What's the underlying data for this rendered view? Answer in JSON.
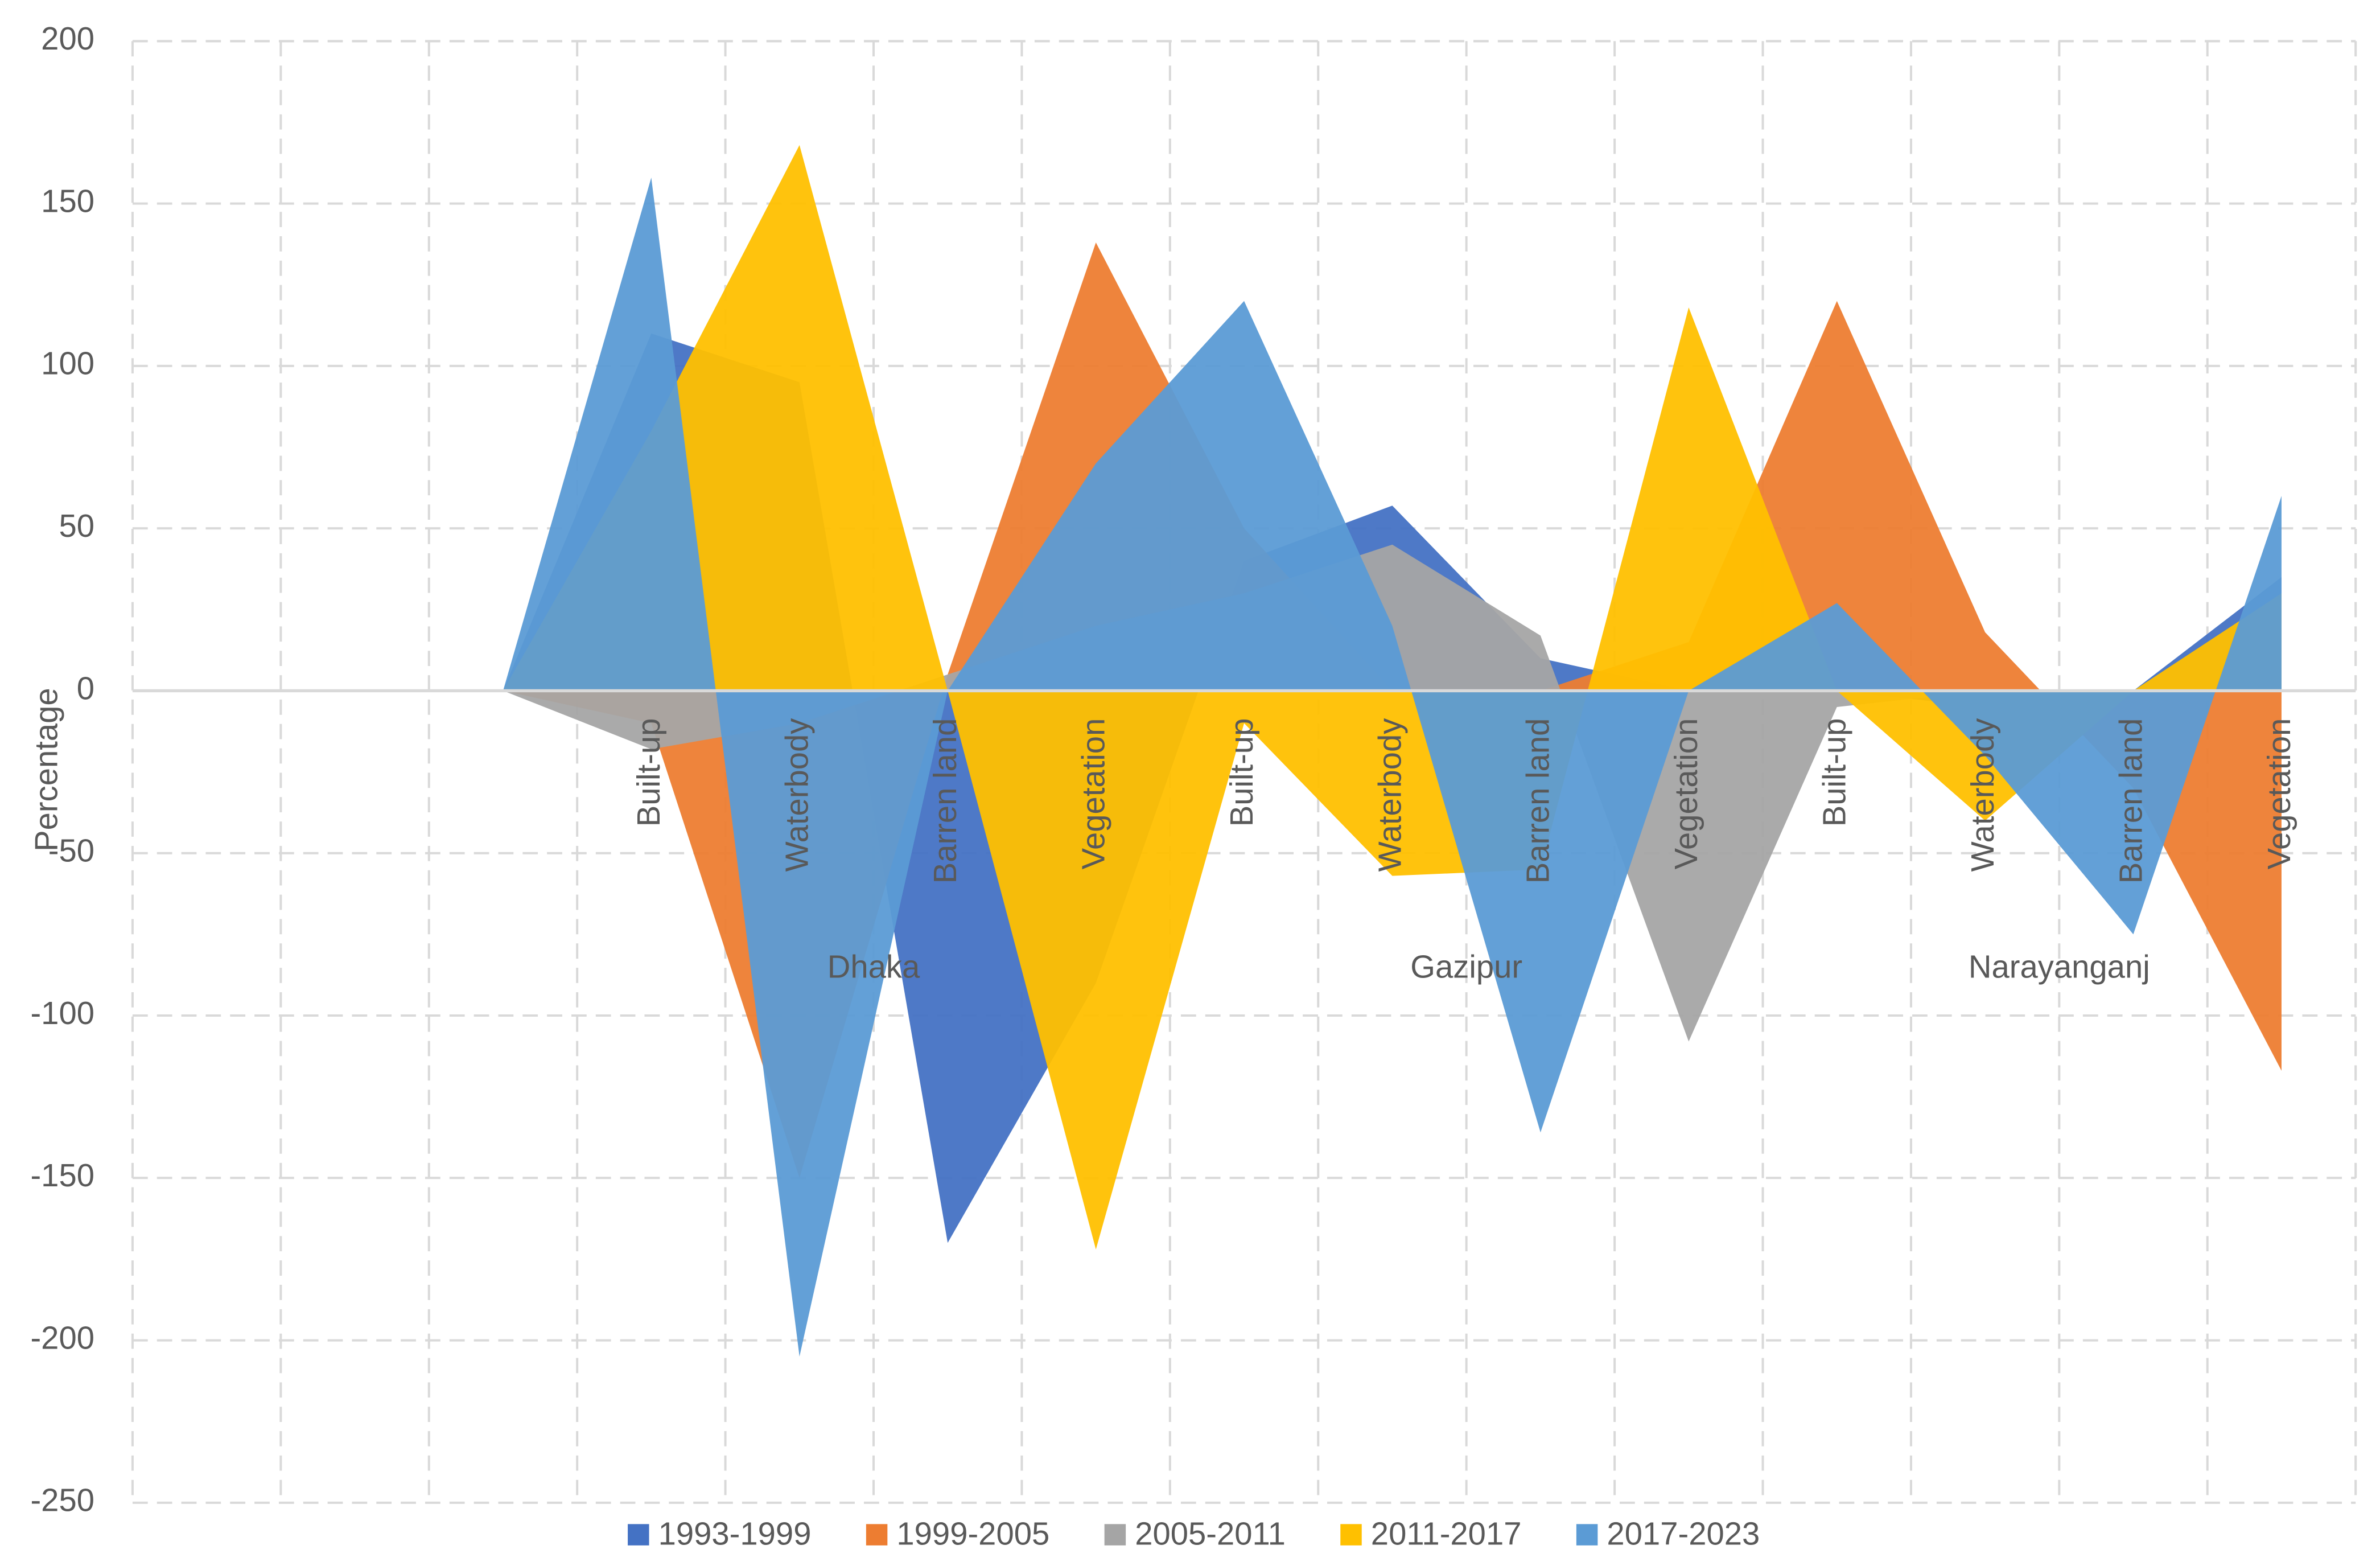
{
  "chart_data": {
    "type": "area",
    "y_label": "Percentage",
    "categories": [
      null,
      null,
      null,
      "Built-up",
      "Waterbody",
      "Barren land",
      "Vegetation",
      "Built-up",
      "Waterbody",
      "Barren land",
      "Vegetation",
      "Built-up",
      "Waterbody",
      "Barren land",
      "Vegetation"
    ],
    "group_labels": [
      "Dhaka",
      "Gazipur",
      "Narayanganj"
    ],
    "series": [
      {
        "name": "1993-1999",
        "color": "#4472c4",
        "values": [
          null,
          null,
          0,
          110,
          95,
          -170,
          -90,
          40,
          57,
          10,
          0,
          0,
          -5,
          0,
          35
        ]
      },
      {
        "name": "1999-2005",
        "color": "#ed7d31",
        "values": [
          null,
          null,
          0,
          -10,
          -150,
          5,
          138,
          50,
          0,
          0,
          15,
          120,
          18,
          -30,
          -117
        ]
      },
      {
        "name": "2005-2011",
        "color": "#a5a5a5",
        "values": [
          null,
          null,
          0,
          -18,
          -10,
          5,
          20,
          30,
          45,
          17,
          -108,
          -5,
          0,
          0,
          0
        ]
      },
      {
        "name": "2011-2017",
        "color": "#ffc000",
        "values": [
          null,
          null,
          0,
          80,
          168,
          0,
          -172,
          -10,
          -57,
          -55,
          118,
          0,
          -40,
          0,
          30
        ]
      },
      {
        "name": "2017-2023",
        "color": "#5b9bd5",
        "values": [
          null,
          null,
          0,
          158,
          -205,
          0,
          70,
          120,
          20,
          -136,
          0,
          27,
          -20,
          -75,
          60
        ]
      }
    ],
    "ylim": [
      -250,
      200
    ],
    "yticks": [
      -250,
      -200,
      -150,
      -100,
      -50,
      0,
      50,
      100,
      150,
      200
    ],
    "grid": true,
    "legend": "bottom"
  }
}
